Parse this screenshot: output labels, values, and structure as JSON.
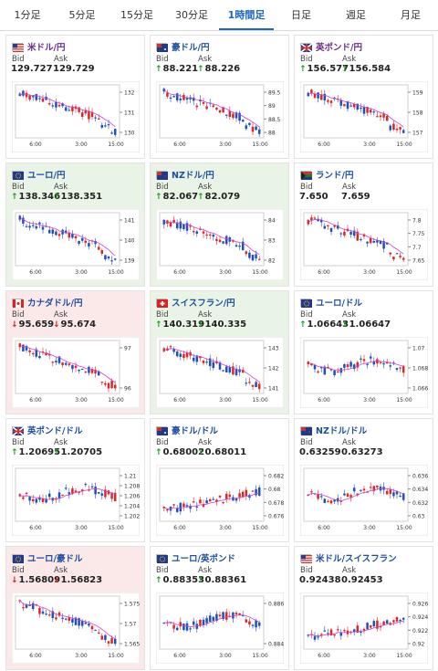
{
  "tabs": [
    {
      "label": "1分足",
      "active": false
    },
    {
      "label": "5分足",
      "active": false
    },
    {
      "label": "15分足",
      "active": false
    },
    {
      "label": "30分足",
      "active": false
    },
    {
      "label": "1時間足",
      "active": true
    },
    {
      "label": "日足",
      "active": false
    },
    {
      "label": "週足",
      "active": false
    },
    {
      "label": "月足",
      "active": false
    }
  ],
  "labels": {
    "bid": "Bid",
    "ask": "Ask"
  },
  "colors": {
    "bull": "#d42a2a",
    "bear": "#1f4fb8",
    "ma": "#d23ed0",
    "up_bg": "#e9f4e6",
    "down_bg": "#fbe8e8"
  },
  "cards": [
    {
      "pair": "米ドル/円",
      "flag": "us-flag-icon",
      "purple": true,
      "bg": "none",
      "bid": "129.727",
      "ask": "129.729",
      "bid_dir": "none",
      "ask_dir": "none",
      "chart": {
        "y_ticks": [
          "132",
          "131",
          "130"
        ],
        "x_ticks": [
          "6:00",
          "3:00",
          "15:00"
        ],
        "trend": "down"
      }
    },
    {
      "pair": "豪ドル/円",
      "flag": "au-flag-icon",
      "purple": false,
      "bg": "none",
      "bid": "88.221",
      "ask": "88.226",
      "bid_dir": "up",
      "ask_dir": "up",
      "chart": {
        "y_ticks": [
          "89.5",
          "89",
          "88.5",
          "88"
        ],
        "x_ticks": [
          "6:00",
          "3:00",
          "15:00"
        ],
        "trend": "down"
      }
    },
    {
      "pair": "英ポンド/円",
      "flag": "gb-flag-icon",
      "purple": true,
      "bg": "none",
      "bid": "156.577",
      "ask": "156.584",
      "bid_dir": "up",
      "ask_dir": "up",
      "chart": {
        "y_ticks": [
          "159",
          "158",
          "157"
        ],
        "x_ticks": [
          "6:00",
          "3:00",
          "15:00"
        ],
        "trend": "down"
      }
    },
    {
      "pair": "ユーロ/円",
      "flag": "eu-flag-icon",
      "purple": false,
      "bg": "up",
      "bid": "138.346",
      "ask": "138.351",
      "bid_dir": "up",
      "ask_dir": "up",
      "chart": {
        "y_ticks": [
          "141",
          "140",
          "139"
        ],
        "x_ticks": [
          "6:00",
          "3:00",
          "15:00"
        ],
        "trend": "down"
      }
    },
    {
      "pair": "NZドル/円",
      "flag": "nz-flag-icon",
      "purple": false,
      "bg": "up",
      "bid": "82.067",
      "ask": "82.079",
      "bid_dir": "up",
      "ask_dir": "up",
      "chart": {
        "y_ticks": [
          "84",
          "83",
          "82"
        ],
        "x_ticks": [
          "6:00",
          "3:00",
          "15:00"
        ],
        "trend": "down"
      }
    },
    {
      "pair": "ランド/円",
      "flag": "za-flag-icon",
      "purple": false,
      "bg": "none",
      "bid": "7.650",
      "ask": "7.659",
      "bid_dir": "none",
      "ask_dir": "none",
      "chart": {
        "y_ticks": [
          "7.8",
          "7.75",
          "7.7",
          "7.65"
        ],
        "x_ticks": [
          "6:00",
          "3:00",
          "15:00"
        ],
        "trend": "down"
      }
    },
    {
      "pair": "カナダドル/円",
      "flag": "ca-flag-icon",
      "purple": false,
      "bg": "down",
      "bid": "95.659",
      "ask": "95.674",
      "bid_dir": "down",
      "ask_dir": "down",
      "chart": {
        "y_ticks": [
          "97",
          "96"
        ],
        "x_ticks": [
          "6:00",
          "3:00",
          "15:00"
        ],
        "trend": "down"
      }
    },
    {
      "pair": "スイスフラン/円",
      "flag": "ch-flag-icon",
      "purple": false,
      "bg": "up",
      "bid": "140.319",
      "ask": "140.335",
      "bid_dir": "up",
      "ask_dir": "up",
      "chart": {
        "y_ticks": [
          "143",
          "142",
          "141"
        ],
        "x_ticks": [
          "6:00",
          "3:00",
          "15:00"
        ],
        "trend": "down"
      }
    },
    {
      "pair": "ユーロ/ドル",
      "flag": "eu-us-flag-icon",
      "purple": false,
      "bg": "none",
      "bid": "1.06643",
      "ask": "1.06647",
      "bid_dir": "up",
      "ask_dir": "up",
      "chart": {
        "y_ticks": [
          "1.07",
          "1.068",
          "1.066"
        ],
        "x_ticks": [
          "6:00",
          "3:00",
          "15:00"
        ],
        "trend": "flat"
      }
    },
    {
      "pair": "英ポンド/ドル",
      "flag": "gb-us-flag-icon",
      "purple": false,
      "bg": "none",
      "bid": "1.20695",
      "ask": "1.20705",
      "bid_dir": "up",
      "ask_dir": "up",
      "chart": {
        "y_ticks": [
          "1.21",
          "1.208",
          "1.206",
          "1.204",
          "1.202"
        ],
        "x_ticks": [
          "6:00",
          "3:00",
          "15:00"
        ],
        "trend": "flat"
      }
    },
    {
      "pair": "豪ドル/ドル",
      "flag": "au-us-flag-icon",
      "purple": false,
      "bg": "none",
      "bid": "0.68002",
      "ask": "0.68011",
      "bid_dir": "up",
      "ask_dir": "up",
      "chart": {
        "y_ticks": [
          "0.682",
          "0.68",
          "0.678",
          "0.676"
        ],
        "x_ticks": [
          "6:00",
          "3:00",
          "15:00"
        ],
        "trend": "up"
      }
    },
    {
      "pair": "NZドル/ドル",
      "flag": "nz-us-flag-icon",
      "purple": false,
      "bg": "none",
      "bid": "0.63259",
      "ask": "0.63273",
      "bid_dir": "none",
      "ask_dir": "none",
      "chart": {
        "y_ticks": [
          "0.636",
          "0.634",
          "0.632",
          "0.63"
        ],
        "x_ticks": [
          "6:00",
          "3:00",
          "15:00"
        ],
        "trend": "flat"
      }
    },
    {
      "pair": "ユーロ/豪ドル",
      "flag": "eu-au-flag-icon",
      "purple": false,
      "bg": "down",
      "bid": "1.56809",
      "ask": "1.56823",
      "bid_dir": "down",
      "ask_dir": "down",
      "chart": {
        "y_ticks": [
          "1.575",
          "1.57",
          "1.565"
        ],
        "x_ticks": [
          "6:00",
          "3:00",
          "15:00"
        ],
        "trend": "down"
      }
    },
    {
      "pair": "ユーロ/英ポンド",
      "flag": "eu-gb-flag-icon",
      "purple": false,
      "bg": "none",
      "bid": "0.88353",
      "ask": "0.88361",
      "bid_dir": "up",
      "ask_dir": "up",
      "chart": {
        "y_ticks": [
          "0.886",
          "0.884"
        ],
        "x_ticks": [
          "6:00",
          "3:00",
          "15:00"
        ],
        "trend": "flat"
      }
    },
    {
      "pair": "米ドル/スイスフラン",
      "flag": "us-ch-flag-icon",
      "purple": false,
      "bg": "none",
      "bid": "0.92438",
      "ask": "0.92453",
      "bid_dir": "none",
      "ask_dir": "none",
      "chart": {
        "y_ticks": [
          "0.926",
          "0.924",
          "0.922",
          "0.92"
        ],
        "x_ticks": [
          "6:00",
          "3:00",
          "15:00"
        ],
        "trend": "up"
      }
    }
  ]
}
